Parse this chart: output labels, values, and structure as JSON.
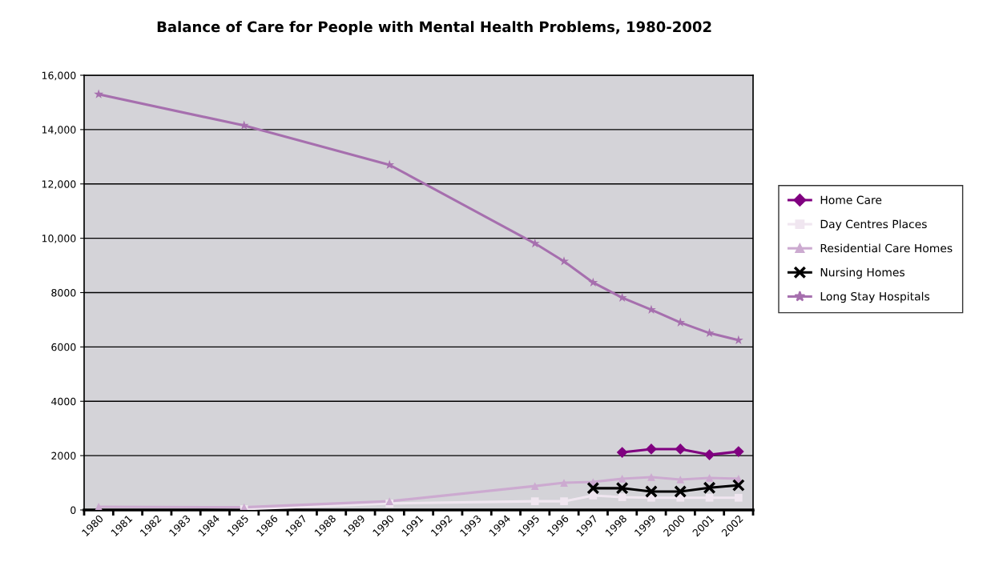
{
  "chart_data": {
    "type": "line",
    "title": "Balance of Care for People with Mental Health Problems, 1980-2002",
    "categories": [
      "1980",
      "1981",
      "1982",
      "1983",
      "1984",
      "1985",
      "1986",
      "1987",
      "1988",
      "1989",
      "1990",
      "1991",
      "1992",
      "1993",
      "1994",
      "1995",
      "1996",
      "1997",
      "1998",
      "1999",
      "2000",
      "2001",
      "2002"
    ],
    "series": [
      {
        "name": "Home Care",
        "color": "#800080",
        "marker": "diamond",
        "values": [
          null,
          null,
          null,
          null,
          null,
          null,
          null,
          null,
          null,
          null,
          null,
          null,
          null,
          null,
          null,
          null,
          null,
          null,
          2120,
          2240,
          2240,
          2030,
          2150
        ]
      },
      {
        "name": "Day Centres Places",
        "color": "#f0e6f0",
        "marker": "square",
        "values": [
          null,
          null,
          null,
          null,
          null,
          30,
          null,
          null,
          null,
          null,
          240,
          null,
          null,
          null,
          null,
          320,
          320,
          530,
          470,
          450,
          450,
          450,
          450
        ]
      },
      {
        "name": "Residential Care Homes",
        "color": "#ccaad0",
        "marker": "triangle",
        "values": [
          120,
          null,
          null,
          null,
          null,
          100,
          null,
          null,
          null,
          null,
          320,
          null,
          null,
          null,
          null,
          880,
          1000,
          1030,
          1150,
          1210,
          1120,
          1180,
          1150
        ]
      },
      {
        "name": "Nursing Homes",
        "color": "#000000",
        "marker": "cross",
        "values": [
          null,
          null,
          null,
          null,
          null,
          null,
          null,
          null,
          null,
          null,
          null,
          null,
          null,
          null,
          null,
          null,
          null,
          800,
          800,
          680,
          680,
          820,
          910
        ]
      },
      {
        "name": "Long Stay Hospitals",
        "color": "#a66fae",
        "marker": "star",
        "values": [
          15300,
          null,
          null,
          null,
          null,
          14150,
          null,
          null,
          null,
          null,
          12700,
          null,
          null,
          null,
          null,
          9810,
          9150,
          8370,
          7810,
          7370,
          6900,
          6510,
          6250
        ]
      }
    ],
    "ylim": [
      0,
      16000
    ],
    "yticks": [
      0,
      {
        "value": 2000,
        "label": "2000"
      },
      {
        "value": 4000,
        "label": "4000"
      },
      {
        "value": 6000,
        "label": "6000"
      },
      {
        "value": 8000,
        "label": "8000"
      },
      {
        "value": 10000,
        "label": "10,000"
      },
      {
        "value": 12000,
        "label": "12,000"
      },
      {
        "value": 14000,
        "label": "14,000"
      },
      {
        "value": 16000,
        "label": "16,000"
      }
    ],
    "grid": "y",
    "legend": "right",
    "line_style": "solid"
  }
}
